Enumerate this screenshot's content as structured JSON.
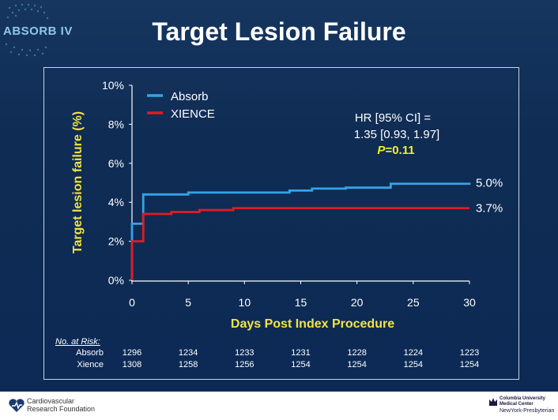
{
  "slide": {
    "logo_text": "ABSORB IV",
    "title": "Target Lesion Failure"
  },
  "chart_data": {
    "type": "line",
    "title": "Target Lesion Failure",
    "xlabel": "Days Post Index Procedure",
    "ylabel": "Target lesion failure (%)",
    "xlim": [
      0,
      30
    ],
    "ylim": [
      0,
      10
    ],
    "x_ticks": [
      0,
      5,
      10,
      15,
      20,
      25,
      30
    ],
    "y_ticks": [
      0,
      2,
      4,
      6,
      8,
      10
    ],
    "y_tick_labels": [
      "0%",
      "2%",
      "4%",
      "6%",
      "8%",
      "10%"
    ],
    "grid": false,
    "legend_position": "top-left",
    "series": [
      {
        "name": "Absorb",
        "color": "#35a3e6",
        "step": true,
        "x": [
          0,
          1,
          5,
          14,
          16,
          19,
          23,
          30
        ],
        "y": [
          2.9,
          4.4,
          4.5,
          4.6,
          4.7,
          4.75,
          4.95,
          5.0
        ],
        "end_label": "5.0%"
      },
      {
        "name": "XIENCE",
        "color": "#e11b22",
        "step": true,
        "x": [
          0,
          1,
          3.5,
          6,
          9,
          30
        ],
        "y": [
          2.0,
          3.4,
          3.5,
          3.6,
          3.7,
          3.7
        ],
        "end_label": "3.7%"
      }
    ],
    "annotation": {
      "line1": "HR [95% CI] =",
      "line2": "1.35 [0.93, 1.97]",
      "p_label": "P",
      "p_value": "=0.11"
    }
  },
  "risk_table": {
    "title": "No. at Risk:",
    "rows": [
      {
        "label": "Absorb",
        "values": [
          "1296",
          "1234",
          "1233",
          "1231",
          "1228",
          "1224",
          "1223"
        ]
      },
      {
        "label": "Xience",
        "values": [
          "1308",
          "1258",
          "1256",
          "1254",
          "1254",
          "1254",
          "1254"
        ]
      }
    ]
  },
  "footer": {
    "crf_line1": "Cardiovascular",
    "crf_line2": "Research Foundation",
    "cu_line1": "Columbia University",
    "cu_line2": "Medical Center",
    "cu_line3": "NewYork-Presbyterian"
  },
  "colors": {
    "background": "#0c2a55",
    "axis_text": "#ffffff",
    "label_yellow": "#f5e342",
    "p_yellow": "#f5ef2a"
  }
}
